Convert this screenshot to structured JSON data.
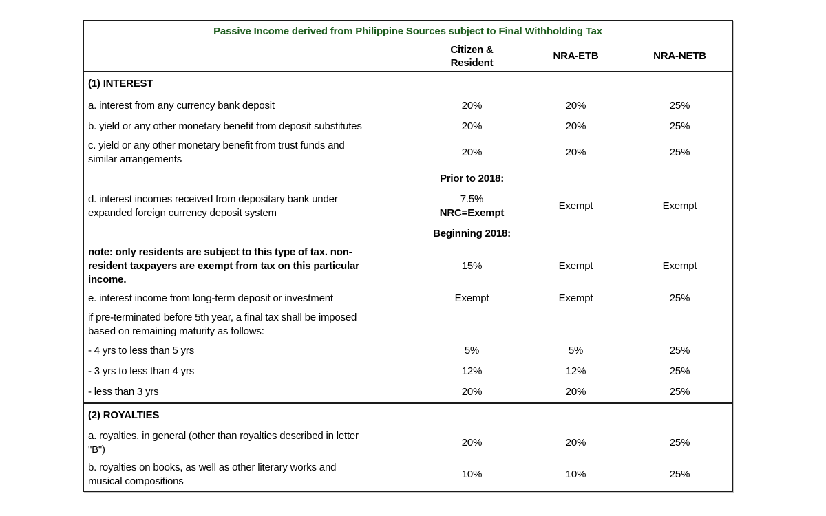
{
  "table": {
    "title": "Passive Income derived from Philippine Sources subject to Final Withholding Tax",
    "title_color": "#1E5C1E",
    "border_color": "#1a1a1a",
    "columns": [
      "Citizen &\nResident",
      "NRA-ETB",
      "NRA-NETB"
    ],
    "sections": [
      {
        "heading": "(1) INTEREST",
        "rows": [
          {
            "desc": "a. interest from any currency bank deposit",
            "values": [
              "20%",
              "20%",
              "25%"
            ]
          },
          {
            "desc": "b. yield or any other monetary benefit from deposit substitutes",
            "values": [
              "20%",
              "20%",
              "25%"
            ]
          },
          {
            "desc": "c. yield or any other monetary benefit from trust funds and\nsimilar arrangements",
            "values": [
              "20%",
              "20%",
              "25%"
            ]
          },
          {
            "desc": "d. interest incomes received from depositary bank under\nexpanded foreign currency deposit system",
            "citizen_cell": {
              "period_1": "Prior to 2018:",
              "rate_1": "7.5%",
              "nrc_note": "NRC=Exempt",
              "period_2": "Beginning 2018:"
            },
            "values": [
              "Exempt",
              "Exempt"
            ]
          },
          {
            "desc": "note: only residents are subject to this type of tax. non-\nresident taxpayers are exempt from tax on this particular\nincome.",
            "bold": true,
            "values": [
              "15%",
              "Exempt",
              "Exempt"
            ]
          },
          {
            "desc": "e. interest income from long-term deposit or investment",
            "values": [
              "Exempt",
              "Exempt",
              "25%"
            ]
          },
          {
            "desc": "if pre-terminated before 5th year, a final tax shall be imposed\nbased on remaining maturity as follows:",
            "values": [
              "",
              "",
              ""
            ]
          },
          {
            "desc": "- 4 yrs to less than 5 yrs",
            "values": [
              "5%",
              "5%",
              "25%"
            ]
          },
          {
            "desc": "- 3 yrs to less than 4 yrs",
            "values": [
              "12%",
              "12%",
              "25%"
            ]
          },
          {
            "desc": "- less than 3 yrs",
            "values": [
              "20%",
              "20%",
              "25%"
            ]
          }
        ]
      },
      {
        "heading": "(2) ROYALTIES",
        "rows": [
          {
            "desc": "a. royalties, in general (other than royalties described in letter\n\"B\")",
            "values": [
              "20%",
              "20%",
              "25%"
            ]
          },
          {
            "desc": "b. royalties on books, as well as other literary works and\nmusical compositions",
            "values": [
              "10%",
              "10%",
              "25%"
            ]
          }
        ]
      }
    ]
  }
}
